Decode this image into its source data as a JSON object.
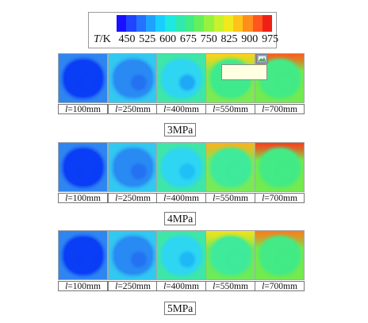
{
  "legend": {
    "unit_var": "T",
    "unit_suffix": "/K",
    "ticks": [
      "450",
      "525",
      "600",
      "675",
      "750",
      "825",
      "900",
      "975"
    ],
    "colors": [
      "#1a10ff",
      "#1f45ff",
      "#2472ff",
      "#1fa2ff",
      "#18ceff",
      "#1fe8e0",
      "#2eeab0",
      "#3fec86",
      "#66ef5c",
      "#95f23f",
      "#c7f22d",
      "#f0ea1d",
      "#ffc21a",
      "#ff8e1d",
      "#ff551e",
      "#f02016"
    ]
  },
  "groups": [
    {
      "label": "3MPa",
      "items": [
        {
          "l_var": "l",
          "l_value": "=100mm",
          "bg": "#2f86f0",
          "blob": "#0a3df6",
          "inner": "#0a3df6",
          "hot": ""
        },
        {
          "l_var": "l",
          "l_value": "=250mm",
          "bg": "#32c8f0",
          "blob": "#2a8af4",
          "inner": "#2472f2",
          "hot": ""
        },
        {
          "l_var": "l",
          "l_value": "=400mm",
          "bg": "#3fe6a8",
          "blob": "#2ed6f2",
          "inner": "#1fa8f6",
          "hot": ""
        },
        {
          "l_var": "l",
          "l_value": "=550mm",
          "bg": "#7cea52",
          "blob": "#3fea8c",
          "inner": "#3fea8c",
          "hot": "#ffd21a"
        },
        {
          "l_var": "l",
          "l_value": "=700mm",
          "bg": "#73ea50",
          "blob": "#43ea86",
          "inner": "#43ea86",
          "hot": "#ff5a1a"
        }
      ]
    },
    {
      "label": "4MPa",
      "items": [
        {
          "l_var": "l",
          "l_value": "=100mm",
          "bg": "#2f86f0",
          "blob": "#0a3df6",
          "inner": "#0a3df6",
          "hot": ""
        },
        {
          "l_var": "l",
          "l_value": "=250mm",
          "bg": "#32c8f0",
          "blob": "#2a8af4",
          "inner": "#2472f2",
          "hot": ""
        },
        {
          "l_var": "l",
          "l_value": "=400mm",
          "bg": "#3fe6a8",
          "blob": "#2ed6f2",
          "inner": "#1fc0f6",
          "hot": ""
        },
        {
          "l_var": "l",
          "l_value": "=550mm",
          "bg": "#78ea58",
          "blob": "#3fea9a",
          "inner": "#3fea9a",
          "hot": "#ffb01a"
        },
        {
          "l_var": "l",
          "l_value": "=700mm",
          "bg": "#73ea50",
          "blob": "#43ea86",
          "inner": "#43ea86",
          "hot": "#ff3a1a"
        }
      ]
    },
    {
      "label": "5MPa",
      "items": [
        {
          "l_var": "l",
          "l_value": "=100mm",
          "bg": "#2f86f0",
          "blob": "#0a3df6",
          "inner": "#0a3df6",
          "hot": ""
        },
        {
          "l_var": "l",
          "l_value": "=250mm",
          "bg": "#32c8f0",
          "blob": "#2a8af4",
          "inner": "#2472f2",
          "hot": ""
        },
        {
          "l_var": "l",
          "l_value": "=400mm",
          "bg": "#3fe6a8",
          "blob": "#2ed6f2",
          "inner": "#1fb8f6",
          "hot": ""
        },
        {
          "l_var": "l",
          "l_value": "=550mm",
          "bg": "#6eea5a",
          "blob": "#3fea9a",
          "inner": "#3fea9a",
          "hot": "#f6e21a"
        },
        {
          "l_var": "l",
          "l_value": "=700mm",
          "bg": "#73ea50",
          "blob": "#43ea86",
          "inner": "#43ea86",
          "hot": "#ff7a1a"
        }
      ]
    }
  ],
  "overlay": {
    "button_icon": "image-frame-icon",
    "tooltip_text": ""
  }
}
